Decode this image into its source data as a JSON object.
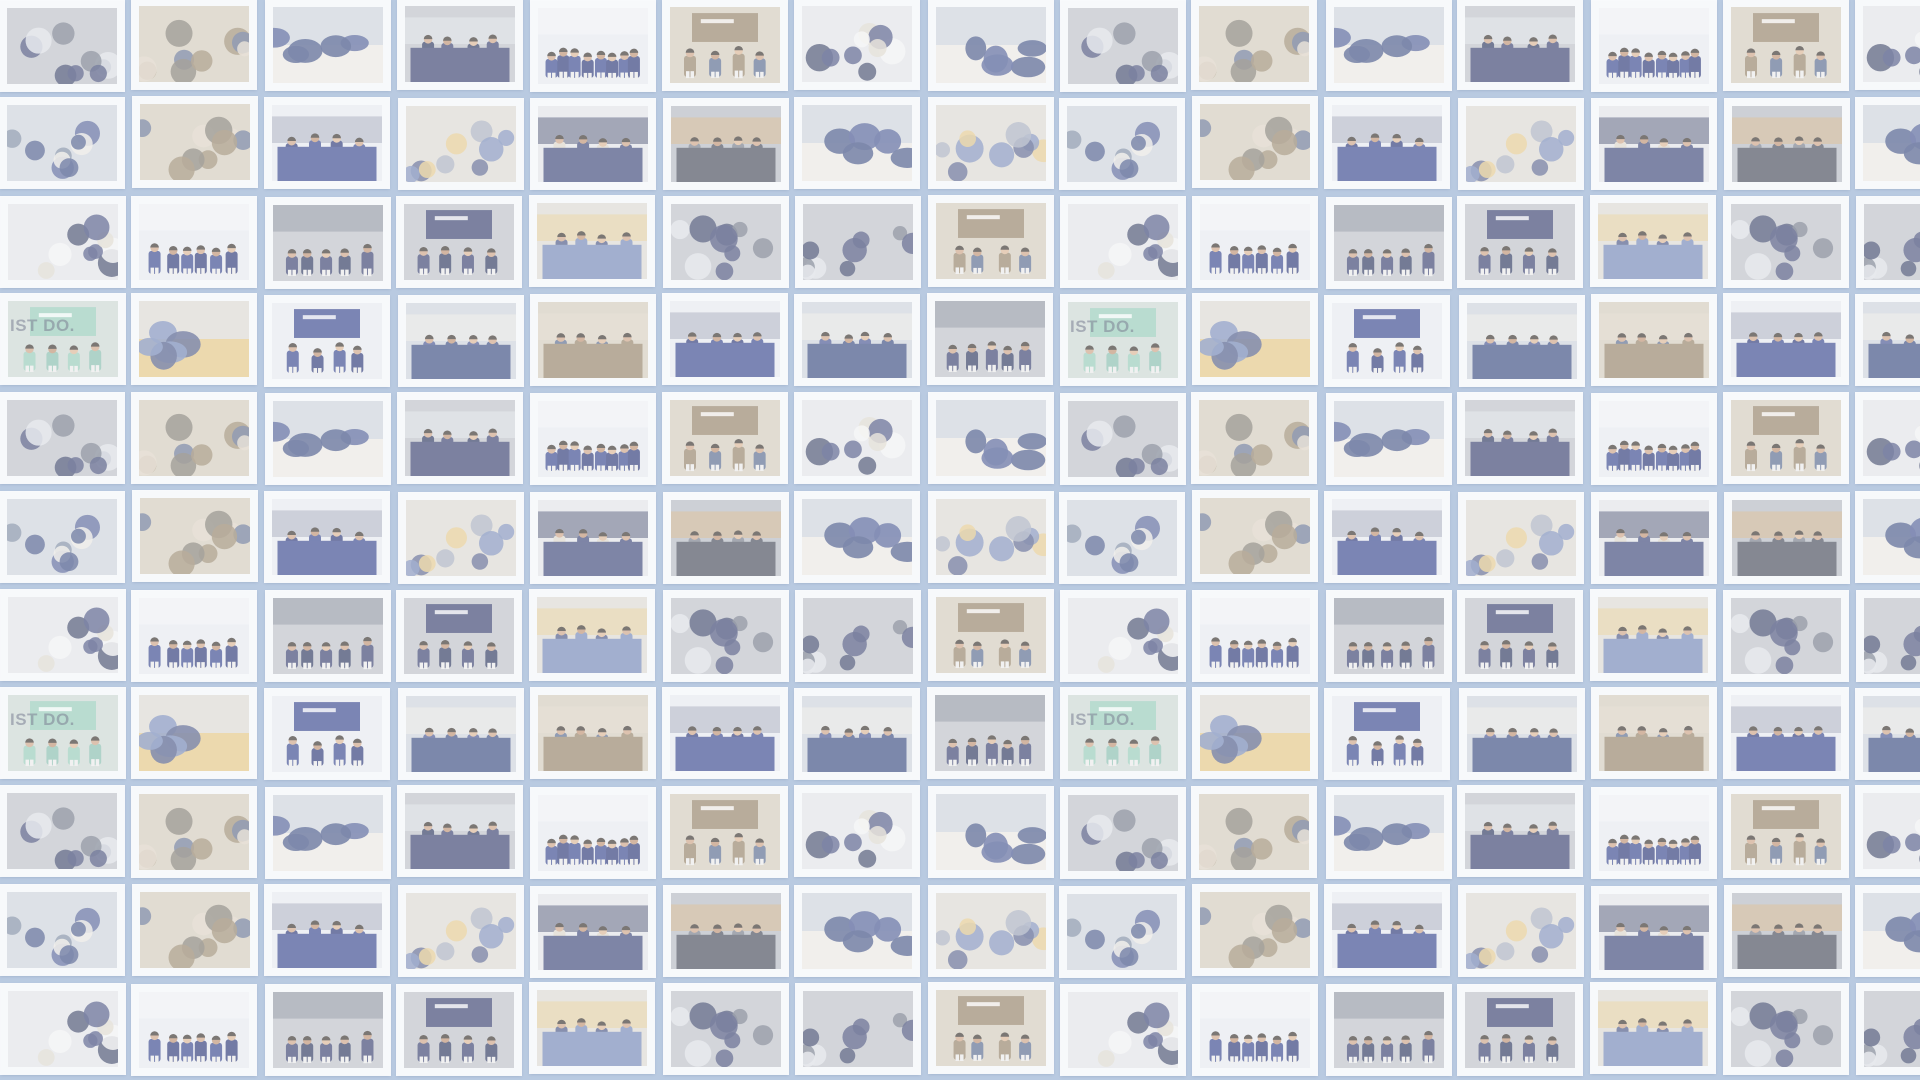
{
  "wall": {
    "background_color": "#b9cae1",
    "frame_color": "#f3f5f8",
    "columns": 15,
    "rows": 11
  },
  "photo_captions": [
    "IST DO."
  ],
  "palettes": [
    {
      "bg": "#c9cfd8",
      "fg": [
        "#2d3f78",
        "#3a4a8a",
        "#e9e6e1",
        "#6a7a94"
      ]
    },
    {
      "bg": "#cfc7b6",
      "fg": [
        "#8d7a5e",
        "#4d5f86",
        "#d9cfbf",
        "#6f6a60"
      ]
    },
    {
      "bg": "#c7d3cf",
      "fg": [
        "#8fc7b3",
        "#7fb8a8",
        "#3c4a70",
        "#dfe6e2"
      ]
    },
    {
      "bg": "#b8bcc4",
      "fg": [
        "#2c3566",
        "#1f2a55",
        "#d9dde4",
        "#60687a"
      ]
    },
    {
      "bg": "#dfe1e6",
      "fg": [
        "#2f3a70",
        "#d8d2c6",
        "#1e2850",
        "#f1f1f1"
      ]
    },
    {
      "bg": "#e4e7ee",
      "fg": [
        "#2a3b86",
        "#1e2a6e",
        "#8a93a8",
        "#f4f4f7"
      ]
    },
    {
      "bg": "#aeb4bd",
      "fg": [
        "#3a3f4f",
        "#6c7382",
        "#c9a06a",
        "#222a3e"
      ]
    },
    {
      "bg": "#d9d6cf",
      "fg": [
        "#6a7fb2",
        "#3e4b7d",
        "#e0c27d",
        "#9aa2b6"
      ]
    }
  ]
}
